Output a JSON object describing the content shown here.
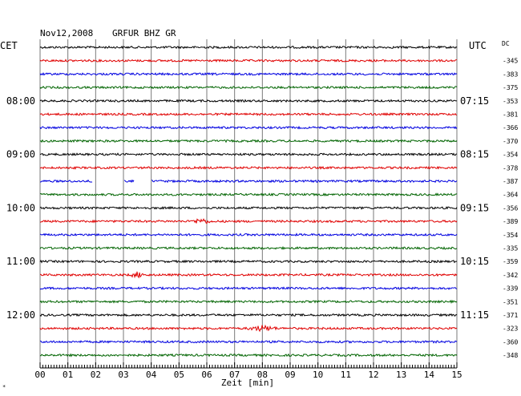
{
  "chart_data": {
    "type": "line",
    "title": "Nov12,2008",
    "station": "GRFUR BHZ GR",
    "left_timezone": "CET",
    "right_timezone": "UTC",
    "dc_header": "DC",
    "xlabel": "Zeit [min]",
    "xlim": [
      0,
      15
    ],
    "x_ticks": [
      "00",
      "01",
      "02",
      "03",
      "04",
      "05",
      "06",
      "07",
      "08",
      "09",
      "10",
      "11",
      "12",
      "13",
      "14",
      "15"
    ],
    "grid": true,
    "trace_colors": [
      "#000000",
      "#e00000",
      "#0000e0",
      "#006400"
    ],
    "left_hour_labels": [
      {
        "row": 4,
        "text": "08:00"
      },
      {
        "row": 8,
        "text": "09:00"
      },
      {
        "row": 12,
        "text": "10:00"
      },
      {
        "row": 16,
        "text": "11:00"
      },
      {
        "row": 20,
        "text": "12:00"
      }
    ],
    "right_hour_labels": [
      {
        "row": 4,
        "text": "07:15"
      },
      {
        "row": 8,
        "text": "08:15"
      },
      {
        "row": 12,
        "text": "09:15"
      },
      {
        "row": 16,
        "text": "10:15"
      },
      {
        "row": 20,
        "text": "11:15"
      }
    ],
    "dc_offsets": [
      "-345",
      "-383",
      "-375",
      "-353",
      "-381",
      "-366",
      "-370",
      "-354",
      "-378",
      "-387",
      "-364",
      "-356",
      "-389",
      "-354",
      "-335",
      "-359",
      "-342",
      "-339",
      "-351",
      "-371",
      "-323",
      "-360",
      "-348"
    ],
    "gaps": [
      {
        "row": 10,
        "from_min": 1.9,
        "to_min": 3.0
      },
      {
        "row": 10,
        "from_min": 3.4,
        "to_min": 4.0
      }
    ],
    "events": [
      {
        "row": 13,
        "center_min": 5.8,
        "width_min": 0.8
      },
      {
        "row": 21,
        "center_min": 8.0,
        "width_min": 1.2
      },
      {
        "row": 17,
        "center_min": 3.5,
        "width_min": 0.6
      }
    ]
  }
}
